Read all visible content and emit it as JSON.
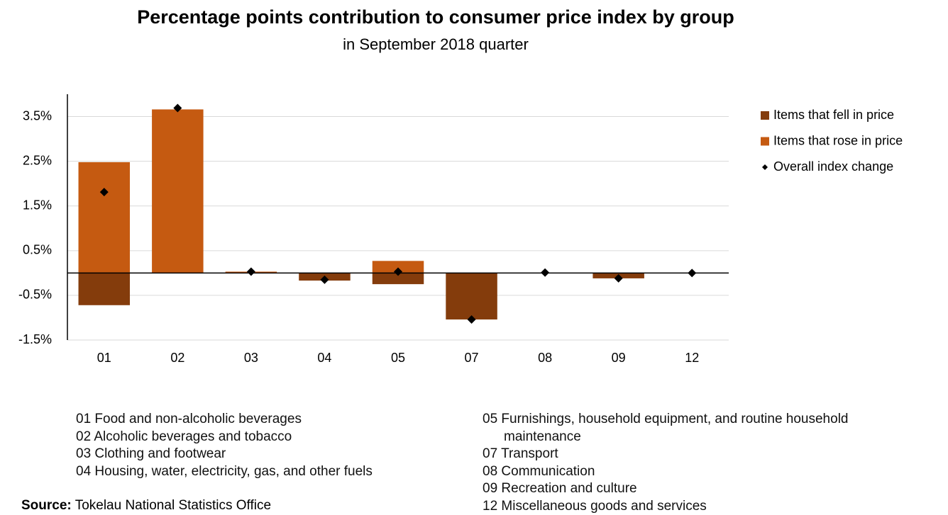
{
  "chart_data": {
    "type": "bar",
    "title": "Percentage points contribution to consumer price index by group",
    "subtitle": "in September 2018 quarter",
    "categories": [
      "01",
      "02",
      "03",
      "04",
      "05",
      "07",
      "08",
      "09",
      "12"
    ],
    "series": [
      {
        "name": "Items that fell in price",
        "type": "bar",
        "color": "#843c0c",
        "values": [
          -0.72,
          0,
          0,
          -0.17,
          -0.25,
          -1.04,
          0,
          -0.12,
          0
        ]
      },
      {
        "name": "Items that rose in price",
        "type": "bar",
        "color": "#c55a11",
        "values": [
          2.48,
          3.66,
          0.03,
          0,
          0.27,
          0,
          0,
          0,
          0
        ]
      },
      {
        "name": "Overall index change",
        "type": "scatter",
        "color": "#000000",
        "values": [
          1.81,
          3.69,
          0.03,
          -0.15,
          0.03,
          -1.04,
          0.01,
          -0.12,
          0.0
        ]
      }
    ],
    "ylim": [
      -1.5,
      4
    ],
    "yticks": [
      {
        "value": -1.5,
        "label": "-1.5%"
      },
      {
        "value": -0.5,
        "label": "-0.5%"
      },
      {
        "value": 0.5,
        "label": "0.5%"
      },
      {
        "value": 1.5,
        "label": "1.5%"
      },
      {
        "value": 2.5,
        "label": "2.5%"
      },
      {
        "value": 3.5,
        "label": "3.5%"
      }
    ],
    "grid": true,
    "legend": "right",
    "notes": [
      "01 Food and non-alcoholic beverages",
      "02 Alcoholic beverages and tobacco",
      "03 Clothing and footwear",
      "04 Housing, water, electricity, gas, and other fuels",
      "05 Furnishings, household equipment, and routine household maintenance",
      "07 Transport",
      "08 Communication",
      "09 Recreation and culture",
      "12 Miscellaneous goods and services"
    ],
    "source_label": "Source:",
    "source": "Tokelau National Statistics Office"
  }
}
